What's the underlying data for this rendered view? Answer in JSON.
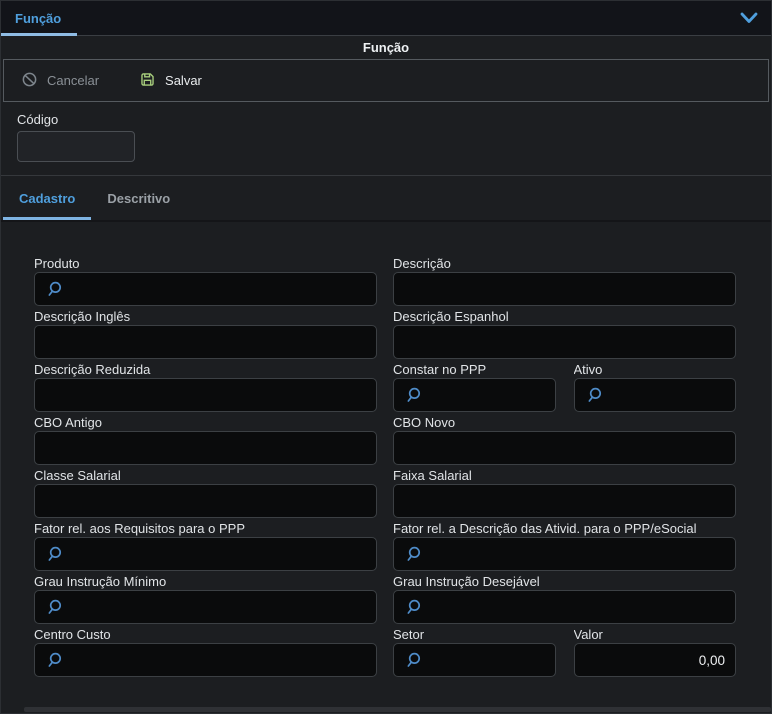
{
  "top_tab": {
    "label": "Função"
  },
  "header": {
    "title": "Função"
  },
  "toolbar": {
    "cancel_label": "Cancelar",
    "save_label": "Salvar"
  },
  "codigo": {
    "label": "Código",
    "value": ""
  },
  "tabs": [
    {
      "label": "Cadastro",
      "active": true
    },
    {
      "label": "Descritivo",
      "active": false
    }
  ],
  "form": {
    "rows": [
      {
        "left": {
          "label": "Produto",
          "search": true
        },
        "right": {
          "label": "Descrição"
        }
      },
      {
        "left": {
          "label": "Descrição Inglês"
        },
        "right": {
          "label": "Descrição Espanhol"
        }
      },
      {
        "left": {
          "label": "Descrição Reduzida"
        },
        "right": {
          "group": [
            {
              "label": "Constar no PPP",
              "search": true
            },
            {
              "label": "Ativo",
              "search": true
            }
          ]
        }
      },
      {
        "left": {
          "label": "CBO Antigo"
        },
        "right": {
          "label": "CBO Novo"
        }
      },
      {
        "left": {
          "label": "Classe Salarial"
        },
        "right": {
          "label": "Faixa Salarial"
        }
      },
      {
        "left": {
          "label": "Fator rel. aos Requisitos para o PPP",
          "search": true
        },
        "right": {
          "label": "Fator rel. a Descrição das Ativid. para o PPP/eSocial",
          "search": true
        }
      },
      {
        "left": {
          "label": "Grau Instrução Mínimo",
          "search": true
        },
        "right": {
          "label": "Grau Instrução Desejável",
          "search": true
        }
      },
      {
        "left": {
          "label": "Centro Custo",
          "search": true
        },
        "right": {
          "group": [
            {
              "label": "Setor",
              "search": true
            },
            {
              "label": "Valor",
              "value": "0,00",
              "align": "right"
            }
          ]
        }
      }
    ]
  },
  "colors": {
    "accent_blue": "#4f9fdd",
    "tab_underline": "#7eb3e2",
    "search_icon": "#4f8cc9",
    "save_icon_green": "#a9d07e",
    "cancel_icon_grey": "#7d858c",
    "input_bg": "#0a0b0c",
    "input_border": "#3c4044"
  }
}
